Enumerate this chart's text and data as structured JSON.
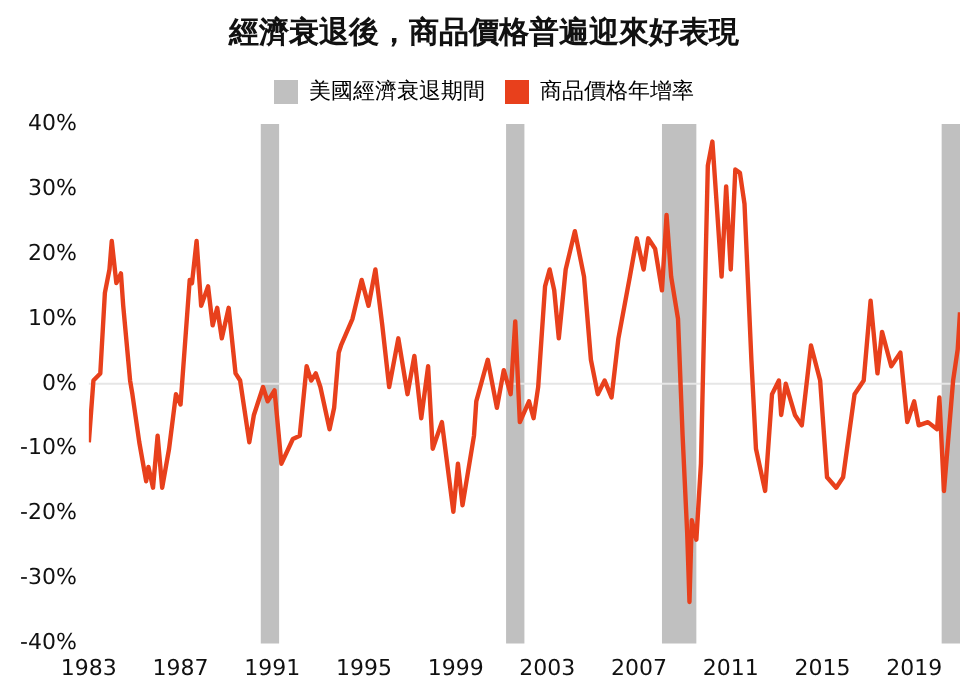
{
  "chart_data": {
    "type": "line",
    "title": "經濟衰退後，商品價格普遍迎來好表現",
    "x": [
      1983.0,
      1983.2,
      1983.5,
      1983.7,
      1983.9,
      1984.0,
      1984.2,
      1984.4,
      1984.5,
      1984.8,
      1984.9,
      1985.2,
      1985.5,
      1985.6,
      1985.8,
      1986.0,
      1986.2,
      1986.5,
      1986.8,
      1987.0,
      1987.4,
      1987.5,
      1987.7,
      1987.9,
      1988.2,
      1988.4,
      1988.6,
      1988.8,
      1989.1,
      1989.4,
      1989.6,
      1990.0,
      1990.2,
      1990.6,
      1990.8,
      1991.1,
      1991.4,
      1991.9,
      1992.2,
      1992.5,
      1992.7,
      1992.9,
      1993.1,
      1993.5,
      1993.7,
      1993.9,
      1994.0,
      1994.5,
      1994.9,
      1995.2,
      1995.5,
      1995.8,
      1996.1,
      1996.5,
      1996.9,
      1997.2,
      1997.5,
      1997.8,
      1998.0,
      1998.4,
      1998.9,
      1999.1,
      1999.3,
      1999.8,
      1999.9,
      2000.4,
      2000.8,
      2001.1,
      2001.4,
      2001.6,
      2001.8,
      2002.2,
      2002.4,
      2002.6,
      2002.9,
      2003.1,
      2003.3,
      2003.5,
      2003.8,
      2004.2,
      2004.6,
      2004.9,
      2005.2,
      2005.5,
      2005.8,
      2006.1,
      2006.6,
      2006.9,
      2007.2,
      2007.4,
      2007.7,
      2008.0,
      2008.2,
      2008.4,
      2008.7,
      2008.9,
      2009.1,
      2009.2,
      2009.3,
      2009.5,
      2009.7,
      2010.0,
      2010.2,
      2010.4,
      2010.6,
      2010.8,
      2011.0,
      2011.2,
      2011.4,
      2011.6,
      2011.9,
      2012.1,
      2012.5,
      2012.8,
      2013.1,
      2013.2,
      2013.4,
      2013.8,
      2014.1,
      2014.5,
      2014.9,
      2015.2,
      2015.6,
      2015.9,
      2016.4,
      2016.8,
      2017.1,
      2017.4,
      2017.6,
      2018.0,
      2018.4,
      2018.7,
      2019.0,
      2019.2,
      2019.6,
      2020.0,
      2020.1,
      2020.3,
      2020.7,
      2020.9,
      2021.0
    ],
    "series": [
      {
        "name": "商品價格年增率",
        "color": "#e8401c",
        "values": [
          -9,
          0.5,
          1.6,
          14,
          17.6,
          22,
          15.5,
          17,
          12,
          0.5,
          -1.6,
          -9,
          -15,
          -12.8,
          -16,
          -8,
          -16,
          -10,
          -1.6,
          -3.2,
          16,
          15.5,
          22,
          12,
          15,
          9,
          11.7,
          7,
          11.7,
          1.6,
          0.5,
          -9,
          -4.8,
          -0.5,
          -2.7,
          -1,
          -12.3,
          -8.5,
          -8,
          2.7,
          0.5,
          1.6,
          -0.5,
          -7,
          -3.7,
          4.8,
          5.9,
          10,
          16,
          12,
          17.6,
          9,
          -0.5,
          7,
          -1.6,
          4.3,
          -5.3,
          2.7,
          -10,
          -5.9,
          -19.7,
          -12.3,
          -18.7,
          -8,
          -2.7,
          3.7,
          -3.7,
          2.1,
          -1.6,
          9.6,
          -5.9,
          -2.7,
          -5.3,
          -0.5,
          15,
          17.6,
          14.4,
          7,
          17.6,
          23.5,
          16.5,
          3.7,
          -1.6,
          0.5,
          -2.1,
          7,
          16.5,
          22.4,
          17.6,
          22.4,
          20.8,
          14.4,
          26,
          16.5,
          10,
          -8,
          -23,
          -33.6,
          -21,
          -24,
          -12.3,
          33.6,
          37.3,
          27,
          16.5,
          30.4,
          17.6,
          33,
          32.5,
          27.7,
          3.7,
          -10,
          -16.5,
          -1.6,
          0.5,
          -4.8,
          0,
          -4.8,
          -6.4,
          5.9,
          0.5,
          -14.4,
          -16,
          -14.4,
          -1.6,
          0.5,
          12.8,
          1.6,
          8,
          2.7,
          4.8,
          -5.9,
          -2.7,
          -6.4,
          -5.9,
          -7,
          -2.1,
          -16.5,
          0.5,
          5.3,
          11
        ]
      }
    ],
    "xlim": [
      1983,
      2021
    ],
    "xticks": [
      1983,
      1987,
      1991,
      1995,
      1999,
      2003,
      2007,
      2011,
      2015,
      2019
    ],
    "ylim": [
      -40,
      40
    ],
    "yticks": [
      {
        "value": -40,
        "label": "-40%"
      },
      {
        "value": -30,
        "label": "-30%"
      },
      {
        "value": -20,
        "label": "-20%"
      },
      {
        "value": -10,
        "label": "-10%"
      },
      {
        "value": 0,
        "label": "0%"
      },
      {
        "value": 10,
        "label": "10%"
      },
      {
        "value": 20,
        "label": "20%"
      },
      {
        "value": 30,
        "label": "30%"
      },
      {
        "value": 40,
        "label": "40%"
      }
    ],
    "bands": [
      {
        "axis": "x",
        "from": 1990.5,
        "to": 1991.3,
        "label": "美國經濟衰退期間",
        "color": "#c0c0c0"
      },
      {
        "axis": "x",
        "from": 2001.2,
        "to": 2002.0,
        "color": "#c0c0c0"
      },
      {
        "axis": "x",
        "from": 2008.0,
        "to": 2009.5,
        "color": "#c0c0c0"
      },
      {
        "axis": "x",
        "from": 2020.2,
        "to": 2021.0,
        "color": "#c0c0c0"
      }
    ],
    "ref_lines": [
      {
        "axis": "y",
        "value": 0,
        "color": "#e6e6e6"
      }
    ],
    "grid": false,
    "legend": "top",
    "marker": "none",
    "line_style": "solid"
  }
}
